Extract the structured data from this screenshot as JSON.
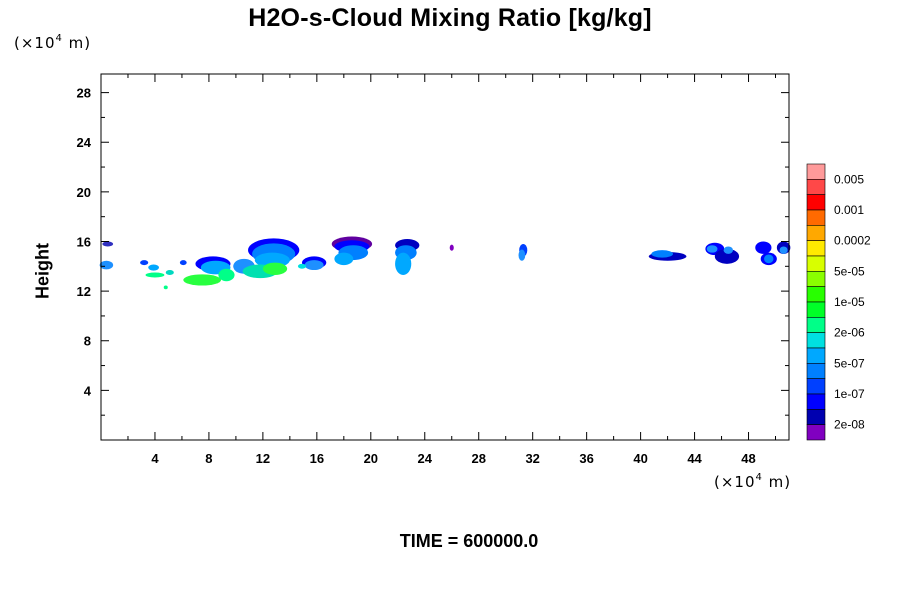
{
  "title": "H2O-s-Cloud Mixing Ratio [kg/kg]",
  "y_unit": {
    "prefix": "(×10",
    "exp": "4",
    "suffix": " m)"
  },
  "x_unit": {
    "prefix": "(×10",
    "exp": "4",
    "suffix": " m)"
  },
  "ylabel": "Height",
  "time_label": "TIME = 600000.0",
  "chart_data": {
    "type": "heatmap",
    "title": "H2O-s-Cloud Mixing Ratio [kg/kg]",
    "ylabel": "Height",
    "xlabel": "",
    "xlim": [
      0,
      51
    ],
    "ylim": [
      0,
      29.5
    ],
    "x_ticks": [
      4,
      8,
      12,
      16,
      20,
      24,
      28,
      32,
      36,
      40,
      44,
      48
    ],
    "y_ticks": [
      4,
      8,
      12,
      16,
      20,
      24,
      28
    ],
    "colorbar": {
      "labels": [
        "0.005",
        "0.001",
        "0.0002",
        "5e-05",
        "1e-05",
        "2e-06",
        "5e-07",
        "1e-07",
        "2e-08"
      ],
      "colors": [
        "#ff9a9a",
        "#ff4848",
        "#ff0000",
        "#ff6a00",
        "#ffa800",
        "#ffea00",
        "#d8ff00",
        "#8aff00",
        "#28ff00",
        "#00ff28",
        "#00ff88",
        "#00e0e0",
        "#00a8ff",
        "#0080ff",
        "#0040ff",
        "#0000ff",
        "#0000b0",
        "#8000c0"
      ]
    },
    "cloud_patches": [
      {
        "x": 0.5,
        "y": 15.8,
        "rx": 0.4,
        "ry": 0.2,
        "c": "#3030c0"
      },
      {
        "x": 0.4,
        "y": 14.1,
        "rx": 0.5,
        "ry": 0.35,
        "c": "#1e90ff"
      },
      {
        "x": 3.2,
        "y": 14.3,
        "rx": 0.3,
        "ry": 0.2,
        "c": "#0040ff"
      },
      {
        "x": 3.9,
        "y": 13.9,
        "rx": 0.4,
        "ry": 0.25,
        "c": "#00a8ff"
      },
      {
        "x": 4.0,
        "y": 13.3,
        "rx": 0.7,
        "ry": 0.2,
        "c": "#00ff88"
      },
      {
        "x": 5.1,
        "y": 13.5,
        "rx": 0.3,
        "ry": 0.2,
        "c": "#00d8c0"
      },
      {
        "x": 6.1,
        "y": 14.3,
        "rx": 0.25,
        "ry": 0.2,
        "c": "#0040ff"
      },
      {
        "x": 4.8,
        "y": 12.3,
        "rx": 0.15,
        "ry": 0.15,
        "c": "#00ff88"
      },
      {
        "x": 8.3,
        "y": 14.2,
        "rx": 1.3,
        "ry": 0.6,
        "c": "#0000ff"
      },
      {
        "x": 8.5,
        "y": 13.9,
        "rx": 1.1,
        "ry": 0.55,
        "c": "#00a8ff"
      },
      {
        "x": 7.5,
        "y": 12.9,
        "rx": 1.4,
        "ry": 0.45,
        "c": "#28ff40"
      },
      {
        "x": 9.3,
        "y": 13.3,
        "rx": 0.6,
        "ry": 0.5,
        "c": "#00ff88"
      },
      {
        "x": 10.6,
        "y": 14.0,
        "rx": 0.8,
        "ry": 0.6,
        "c": "#1e90ff"
      },
      {
        "x": 12.8,
        "y": 15.3,
        "rx": 1.9,
        "ry": 0.95,
        "c": "#0000ff"
      },
      {
        "x": 12.8,
        "y": 15.0,
        "rx": 1.6,
        "ry": 0.85,
        "c": "#0080ff"
      },
      {
        "x": 12.7,
        "y": 14.5,
        "rx": 1.3,
        "ry": 0.6,
        "c": "#00a8ff"
      },
      {
        "x": 11.8,
        "y": 13.6,
        "rx": 1.3,
        "ry": 0.55,
        "c": "#00e0b0"
      },
      {
        "x": 12.9,
        "y": 13.8,
        "rx": 0.9,
        "ry": 0.5,
        "c": "#28ff40"
      },
      {
        "x": 15.8,
        "y": 14.3,
        "rx": 0.9,
        "ry": 0.5,
        "c": "#0000ff"
      },
      {
        "x": 15.8,
        "y": 14.1,
        "rx": 0.7,
        "ry": 0.4,
        "c": "#1e90ff"
      },
      {
        "x": 14.9,
        "y": 14.0,
        "rx": 0.3,
        "ry": 0.2,
        "c": "#00e0e0"
      },
      {
        "x": 18.6,
        "y": 15.8,
        "rx": 1.5,
        "ry": 0.6,
        "c": "#6000a0"
      },
      {
        "x": 18.6,
        "y": 15.6,
        "rx": 1.3,
        "ry": 0.5,
        "c": "#0000ff"
      },
      {
        "x": 18.7,
        "y": 15.1,
        "rx": 1.1,
        "ry": 0.6,
        "c": "#0080ff"
      },
      {
        "x": 18.0,
        "y": 14.6,
        "rx": 0.7,
        "ry": 0.5,
        "c": "#00a8ff"
      },
      {
        "x": 22.7,
        "y": 15.7,
        "rx": 0.9,
        "ry": 0.5,
        "c": "#0000c0"
      },
      {
        "x": 22.6,
        "y": 15.1,
        "rx": 0.8,
        "ry": 0.6,
        "c": "#0080ff"
      },
      {
        "x": 22.4,
        "y": 14.2,
        "rx": 0.6,
        "ry": 0.9,
        "c": "#00a8ff"
      },
      {
        "x": 26.0,
        "y": 15.5,
        "rx": 0.15,
        "ry": 0.25,
        "c": "#8000c0"
      },
      {
        "x": 31.3,
        "y": 15.3,
        "rx": 0.3,
        "ry": 0.5,
        "c": "#0040ff"
      },
      {
        "x": 31.2,
        "y": 14.9,
        "rx": 0.25,
        "ry": 0.45,
        "c": "#1e90ff"
      },
      {
        "x": 42.0,
        "y": 14.8,
        "rx": 1.4,
        "ry": 0.35,
        "c": "#0000c0"
      },
      {
        "x": 41.6,
        "y": 15.0,
        "rx": 0.8,
        "ry": 0.3,
        "c": "#0080ff"
      },
      {
        "x": 45.5,
        "y": 15.4,
        "rx": 0.7,
        "ry": 0.5,
        "c": "#0000ff"
      },
      {
        "x": 46.4,
        "y": 14.8,
        "rx": 0.9,
        "ry": 0.6,
        "c": "#0000c0"
      },
      {
        "x": 45.3,
        "y": 15.4,
        "rx": 0.4,
        "ry": 0.3,
        "c": "#1e90ff"
      },
      {
        "x": 46.5,
        "y": 15.3,
        "rx": 0.35,
        "ry": 0.3,
        "c": "#1e90ff"
      },
      {
        "x": 49.1,
        "y": 15.5,
        "rx": 0.6,
        "ry": 0.5,
        "c": "#0000ff"
      },
      {
        "x": 49.5,
        "y": 14.6,
        "rx": 0.6,
        "ry": 0.5,
        "c": "#0000ff"
      },
      {
        "x": 49.5,
        "y": 14.6,
        "rx": 0.35,
        "ry": 0.35,
        "c": "#0080ff"
      },
      {
        "x": 50.6,
        "y": 15.5,
        "rx": 0.5,
        "ry": 0.5,
        "c": "#0000c0"
      },
      {
        "x": 50.6,
        "y": 15.3,
        "rx": 0.3,
        "ry": 0.3,
        "c": "#1e90ff"
      }
    ]
  }
}
